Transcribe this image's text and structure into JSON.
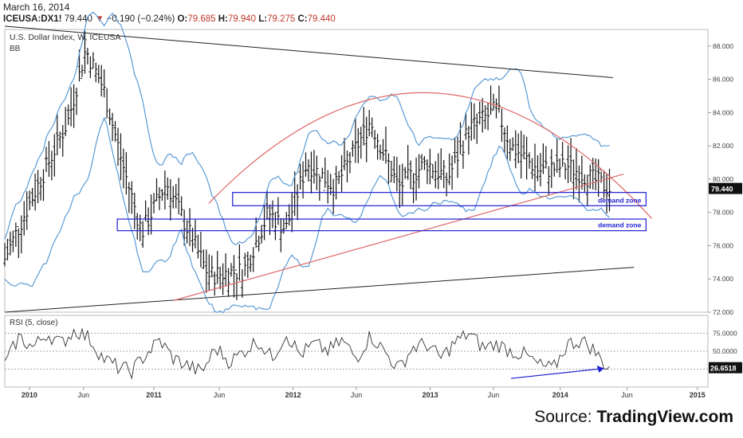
{
  "header": {
    "date": "March 16, 2014",
    "symbol": "ICEUSA:DX1!",
    "last": "79.440",
    "change": "−0.190 (−0.24%)",
    "open_label": "O:",
    "open": "79.685",
    "high_label": "H:",
    "high": "79.940",
    "low_label": "L:",
    "low": "79.275",
    "close_label": "C:",
    "close": "79.440"
  },
  "chart_data": [
    {
      "type": "ohlc",
      "title": "U.S. Dollar Index, W, ICEUSA",
      "indicator": "BB",
      "y_ticks": [
        "88.000",
        "86.000",
        "84.000",
        "82.000",
        "80.000",
        "78.000",
        "76.000",
        "74.000",
        "72.000"
      ],
      "ylim": [
        72,
        89
      ],
      "x_ticks": [
        "2010",
        "Jun",
        "2011",
        "Jun",
        "2012",
        "Jun",
        "2013",
        "Jun",
        "2014",
        "Jun",
        "2015"
      ],
      "last_price_label": "79.440",
      "annotations": [
        {
          "type": "demand-zone",
          "label": "demand zone",
          "price_range": [
            78.4,
            79.2
          ]
        },
        {
          "type": "demand-zone",
          "label": "demand zone",
          "price_range": [
            76.9,
            77.6
          ]
        }
      ],
      "price_anchors": [
        {
          "t": 0,
          "v": 75.2
        },
        {
          "t": 0.04,
          "v": 79.0
        },
        {
          "t": 0.09,
          "v": 83.5
        },
        {
          "t": 0.115,
          "v": 87.8
        },
        {
          "t": 0.14,
          "v": 85.5
        },
        {
          "t": 0.17,
          "v": 80.5
        },
        {
          "t": 0.195,
          "v": 76.8
        },
        {
          "t": 0.23,
          "v": 79.8
        },
        {
          "t": 0.26,
          "v": 77.0
        },
        {
          "t": 0.29,
          "v": 74.2
        },
        {
          "t": 0.34,
          "v": 74.5
        },
        {
          "t": 0.375,
          "v": 78.0
        },
        {
          "t": 0.4,
          "v": 77.0
        },
        {
          "t": 0.43,
          "v": 81.0
        },
        {
          "t": 0.47,
          "v": 79.5
        },
        {
          "t": 0.52,
          "v": 83.5
        },
        {
          "t": 0.56,
          "v": 79.5
        },
        {
          "t": 0.6,
          "v": 81.0
        },
        {
          "t": 0.63,
          "v": 80.0
        },
        {
          "t": 0.66,
          "v": 83.0
        },
        {
          "t": 0.7,
          "v": 84.2
        },
        {
          "t": 0.72,
          "v": 82.0
        },
        {
          "t": 0.76,
          "v": 80.5
        },
        {
          "t": 0.8,
          "v": 80.8
        },
        {
          "t": 0.835,
          "v": 80.0
        },
        {
          "t": 0.86,
          "v": 79.44
        }
      ]
    },
    {
      "type": "line",
      "title": "RSI (5, close)",
      "y_ticks": [
        "75.0000",
        "50.0000"
      ],
      "last_value_label": "26.6518",
      "rsi_anchors": [
        {
          "t": 0,
          "v": 30
        },
        {
          "t": 0.02,
          "v": 70
        },
        {
          "t": 0.04,
          "v": 55
        },
        {
          "t": 0.06,
          "v": 75
        },
        {
          "t": 0.08,
          "v": 60
        },
        {
          "t": 0.1,
          "v": 80
        },
        {
          "t": 0.12,
          "v": 68
        },
        {
          "t": 0.14,
          "v": 40
        },
        {
          "t": 0.16,
          "v": 28
        },
        {
          "t": 0.18,
          "v": 22
        },
        {
          "t": 0.2,
          "v": 45
        },
        {
          "t": 0.22,
          "v": 65
        },
        {
          "t": 0.24,
          "v": 40
        },
        {
          "t": 0.26,
          "v": 30
        },
        {
          "t": 0.28,
          "v": 20
        },
        {
          "t": 0.3,
          "v": 55
        },
        {
          "t": 0.32,
          "v": 35
        },
        {
          "t": 0.34,
          "v": 50
        },
        {
          "t": 0.36,
          "v": 65
        },
        {
          "t": 0.38,
          "v": 40
        },
        {
          "t": 0.4,
          "v": 75
        },
        {
          "t": 0.42,
          "v": 45
        },
        {
          "t": 0.44,
          "v": 60
        },
        {
          "t": 0.46,
          "v": 50
        },
        {
          "t": 0.48,
          "v": 65
        },
        {
          "t": 0.5,
          "v": 40
        },
        {
          "t": 0.52,
          "v": 72
        },
        {
          "t": 0.54,
          "v": 50
        },
        {
          "t": 0.56,
          "v": 25
        },
        {
          "t": 0.58,
          "v": 55
        },
        {
          "t": 0.6,
          "v": 60
        },
        {
          "t": 0.62,
          "v": 40
        },
        {
          "t": 0.64,
          "v": 62
        },
        {
          "t": 0.66,
          "v": 75
        },
        {
          "t": 0.68,
          "v": 55
        },
        {
          "t": 0.7,
          "v": 60
        },
        {
          "t": 0.72,
          "v": 50
        },
        {
          "t": 0.74,
          "v": 45
        },
        {
          "t": 0.76,
          "v": 30
        },
        {
          "t": 0.78,
          "v": 25
        },
        {
          "t": 0.8,
          "v": 60
        },
        {
          "t": 0.82,
          "v": 65
        },
        {
          "t": 0.835,
          "v": 55
        },
        {
          "t": 0.85,
          "v": 35
        },
        {
          "t": 0.86,
          "v": 27
        }
      ]
    }
  ],
  "source": {
    "prefix": "Source: ",
    "brand": "TradingView.com"
  }
}
